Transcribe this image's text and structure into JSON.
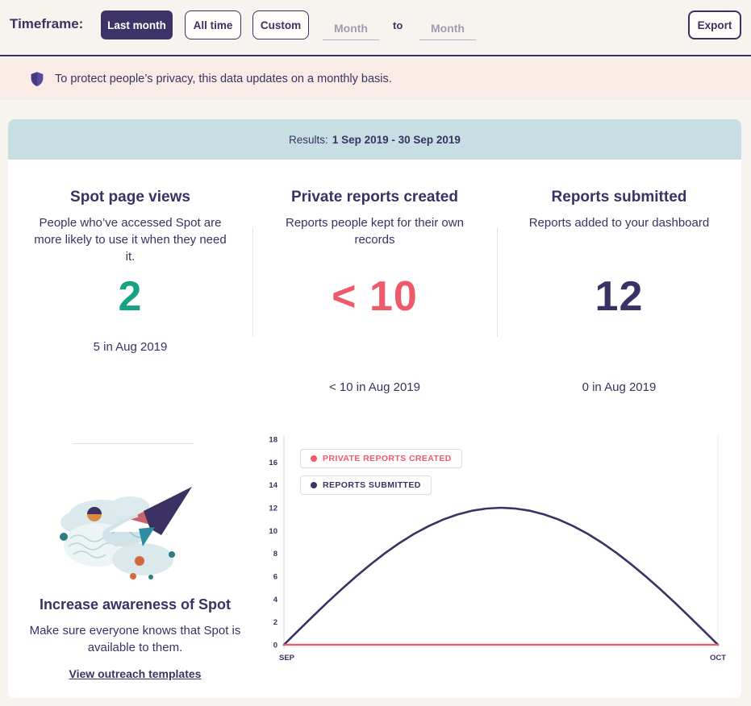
{
  "header": {
    "timeframe_label": "Timeframe:",
    "last_month_button": "Last month",
    "all_time_button": "All time",
    "custom_button": "Custom",
    "month_from_placeholder": "Month",
    "to_label": "to",
    "month_to_placeholder": "Month",
    "export_button": "Export"
  },
  "privacy_notice": {
    "icon": "shield-icon",
    "text": "To protect people’s privacy, this data updates on a monthly basis."
  },
  "results_bar": {
    "prefix": "Results:",
    "range": "1 Sep 2019 - 30 Sep 2019"
  },
  "stats": [
    {
      "title": "Spot page views",
      "description": "People who’ve accessed Spot are more likely to use it when they need it.",
      "value": "2",
      "value_color": "#17a284",
      "previous": "5 in Aug 2019"
    },
    {
      "title": "Private reports created",
      "description": "Reports people kept for their own records",
      "value": "< 10",
      "value_color": "#ef5a6a",
      "previous": "< 10 in Aug 2019"
    },
    {
      "title": "Reports submitted",
      "description": "Reports added to your dashboard",
      "value": "12",
      "value_color": "#3b3163",
      "previous": "0 in Aug 2019"
    }
  ],
  "awareness": {
    "illustration": "paper-plane-illustration",
    "title": "Increase awareness of Spot",
    "description": "Make sure everyone knows that Spot is available to them.",
    "link": "View outreach templates"
  },
  "colors": {
    "navy": "#3b3163",
    "teal": "#17a284",
    "red": "#ef5a6a",
    "page_bg": "#f7f4ef",
    "notice_bg": "#f9ece7",
    "results_bar_bg": "#c7dfe3",
    "active_button_bg": "#3d3366"
  },
  "chart_data": {
    "type": "line",
    "title": "",
    "xlabel": "",
    "ylabel": "",
    "ylim": [
      0,
      18
    ],
    "ytick_step": 2,
    "grid": false,
    "legend_position": "top-left",
    "xticklabels": [
      "SEP",
      "OCT"
    ],
    "x": [
      0,
      1,
      2,
      3,
      4,
      5,
      6,
      7,
      8,
      9,
      10,
      11,
      12,
      13,
      14,
      15,
      16,
      17,
      18,
      19,
      20,
      21,
      22,
      23,
      24,
      25,
      26,
      27,
      28,
      29,
      30
    ],
    "series": [
      {
        "name": "PRIVATE REPORTS CREATED",
        "color": "#ef5a66",
        "values": [
          0,
          0,
          0,
          0,
          0,
          0,
          0,
          0,
          0,
          0,
          0,
          0,
          0,
          0,
          0,
          0,
          0,
          0,
          0,
          0,
          0,
          0,
          0,
          0,
          0,
          0,
          0,
          0,
          0,
          0,
          0
        ]
      },
      {
        "name": "REPORTS SUBMITTED",
        "color": "#3b3163",
        "values": [
          0,
          1.25,
          2.49,
          3.71,
          4.88,
          6,
          7.05,
          8.03,
          8.92,
          9.71,
          10.39,
          10.96,
          11.41,
          11.74,
          11.93,
          12,
          11.93,
          11.74,
          11.41,
          10.96,
          10.39,
          9.71,
          8.92,
          8.03,
          7.05,
          6,
          4.88,
          3.71,
          2.49,
          1.25,
          0
        ]
      }
    ]
  }
}
